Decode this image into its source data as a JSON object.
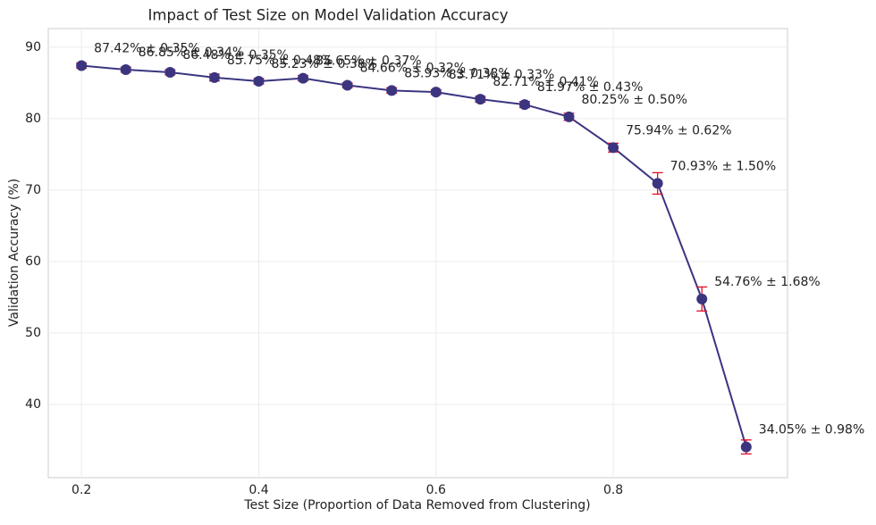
{
  "chart_data": {
    "type": "errorbar-line",
    "title": "Impact of Test Size on Model Validation Accuracy",
    "x_label": "Test Size (Proportion of Data Removed from Clustering)",
    "y_label": "Validation Accuracy (%)",
    "x": [
      0.2,
      0.25,
      0.3,
      0.35,
      0.4,
      0.45,
      0.5,
      0.55,
      0.6,
      0.65,
      0.7,
      0.75,
      0.8,
      0.85,
      0.9,
      0.95
    ],
    "values": [
      87.42,
      86.85,
      86.48,
      85.75,
      85.23,
      85.65,
      84.66,
      83.93,
      83.71,
      82.71,
      81.97,
      80.25,
      75.94,
      70.93,
      54.76,
      34.05
    ],
    "errors": [
      0.35,
      0.34,
      0.35,
      0.48,
      0.38,
      0.37,
      0.32,
      0.38,
      0.33,
      0.41,
      0.43,
      0.5,
      0.62,
      1.5,
      1.68,
      0.98
    ],
    "value_labels": [
      "87.42% ± 0.35%",
      "86.85% ± 0.34%",
      "86.48% ± 0.35%",
      "85.75% ± 0.48%",
      "85.23% ± 0.38%",
      "85.65% ± 0.37%",
      "84.66% ± 0.32%",
      "83.93% ± 0.38%",
      "83.71% ± 0.33%",
      "82.71% ± 0.41%",
      "81.97% ± 0.43%",
      "80.25% ± 0.50%",
      "75.94% ± 0.62%",
      "70.93% ± 1.50%",
      "54.76% ± 1.68%",
      "34.05% ± 0.98%"
    ],
    "color": "#3b3580",
    "error_color": "#e0102a",
    "xlim": [
      0.1625,
      0.9966
    ],
    "ylim": [
      29.75,
      92.6
    ],
    "xticks": [
      0.2,
      0.4,
      0.6,
      0.8
    ],
    "yticks": [
      40,
      50,
      60,
      70,
      80,
      90
    ],
    "grid": true
  }
}
